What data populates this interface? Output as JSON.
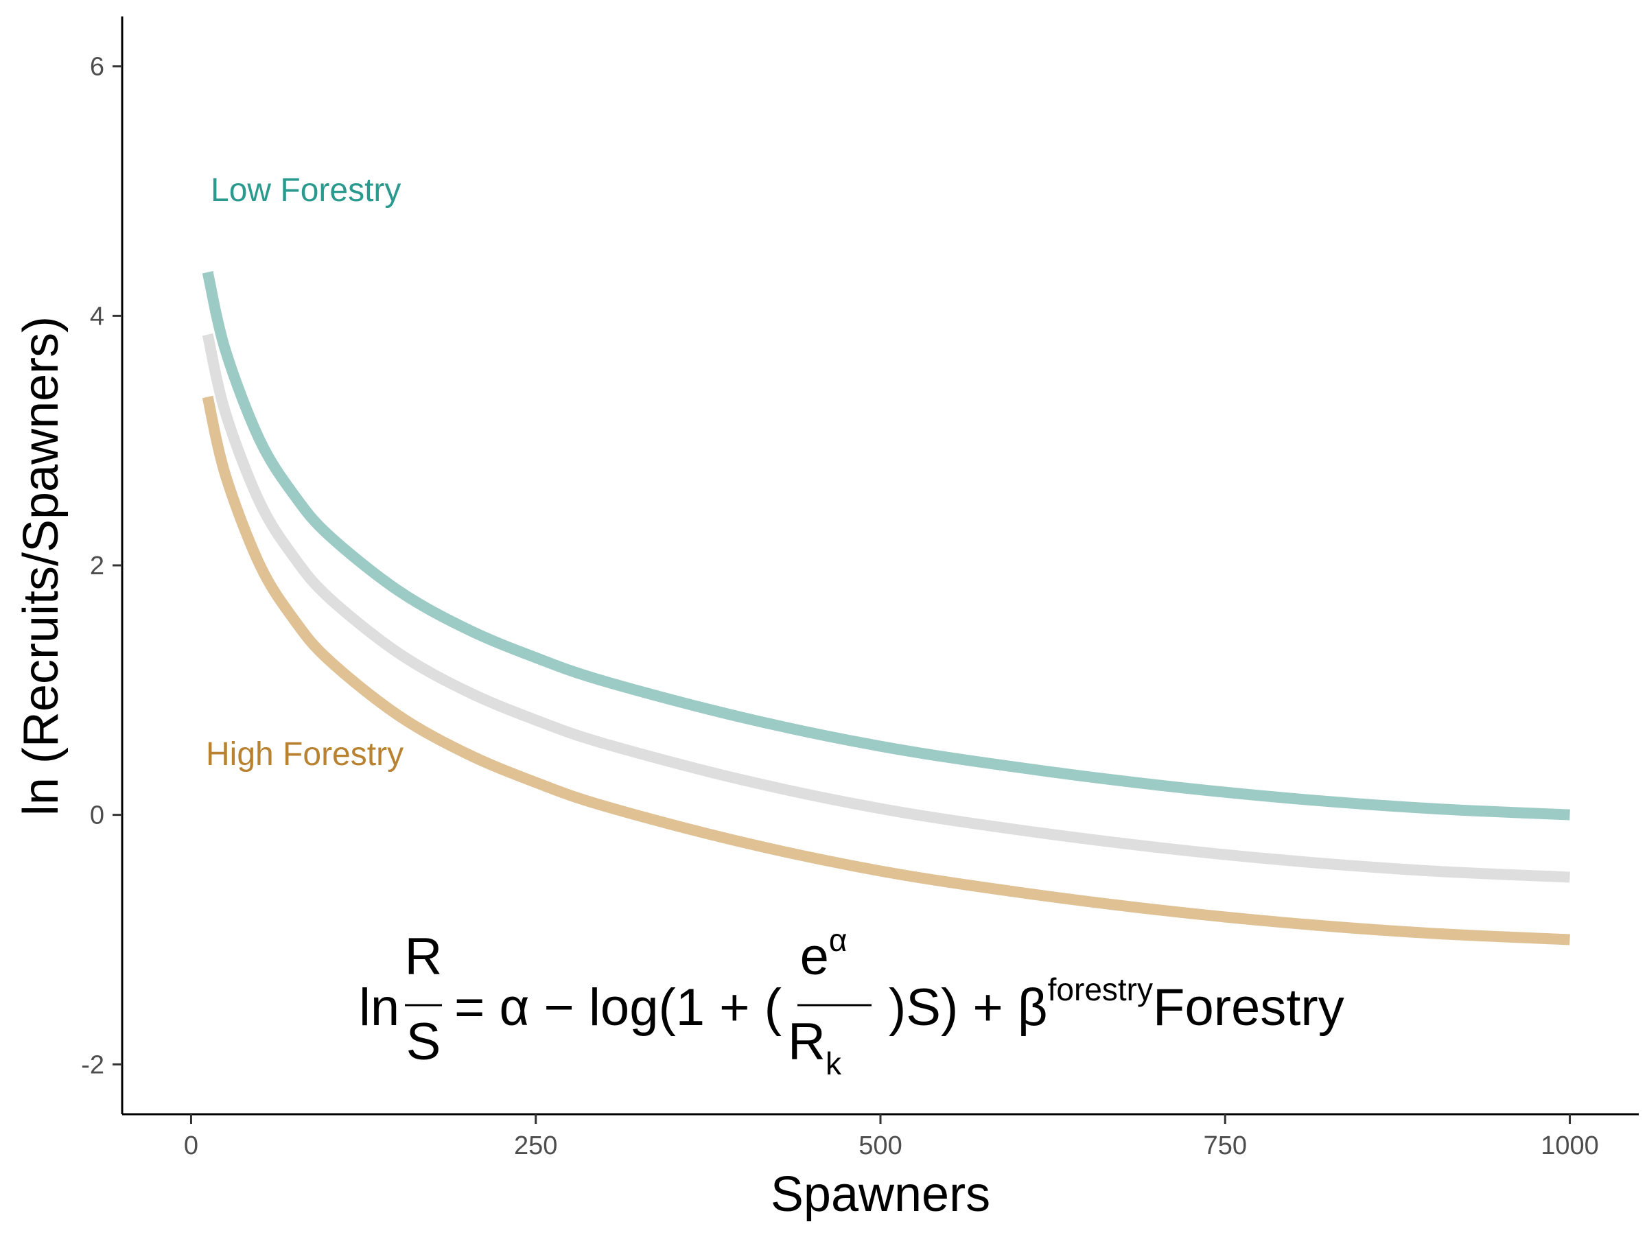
{
  "chart_data": {
    "type": "line",
    "xlabel": "Spawners",
    "ylabel": "ln (Recruits/Spawners)",
    "xlim": [
      -50,
      1050
    ],
    "ylim": [
      -2.4,
      6.4
    ],
    "x_ticks": [
      0,
      250,
      500,
      750,
      1000
    ],
    "y_ticks": [
      -2,
      0,
      2,
      4,
      6
    ],
    "x_tick_labels": [
      "0",
      "250",
      "500",
      "750",
      "1000"
    ],
    "y_tick_labels": [
      "-2",
      "0",
      "2",
      "4",
      "6"
    ],
    "grid": false,
    "x_range": [
      12,
      1000
    ],
    "series": [
      {
        "name": "Low Forestry",
        "color": "#9ccbc6",
        "label_color": "#2a9a8f",
        "x": [
          12,
          25,
          50,
          75,
          100,
          150,
          200,
          250,
          300,
          400,
          500,
          600,
          700,
          800,
          900,
          1000
        ],
        "values": [
          4.35,
          3.72,
          3.0,
          2.56,
          2.24,
          1.8,
          1.49,
          1.26,
          1.07,
          0.78,
          0.55,
          0.38,
          0.24,
          0.13,
          0.05,
          0.0
        ]
      },
      {
        "name": "",
        "color": "#dedede",
        "x": [
          12,
          25,
          50,
          75,
          100,
          150,
          200,
          250,
          300,
          400,
          500,
          600,
          700,
          800,
          900,
          1000
        ],
        "values": [
          3.85,
          3.22,
          2.5,
          2.06,
          1.74,
          1.3,
          0.99,
          0.76,
          0.57,
          0.28,
          0.05,
          -0.12,
          -0.26,
          -0.37,
          -0.45,
          -0.5
        ]
      },
      {
        "name": "High Forestry",
        "color": "#dfc194",
        "label_color": "#b88230",
        "x": [
          12,
          25,
          50,
          75,
          100,
          150,
          200,
          250,
          300,
          400,
          500,
          600,
          700,
          800,
          900,
          1000
        ],
        "values": [
          3.35,
          2.72,
          2.0,
          1.56,
          1.24,
          0.8,
          0.49,
          0.26,
          0.07,
          -0.22,
          -0.45,
          -0.62,
          -0.76,
          -0.87,
          -0.95,
          -1.0
        ]
      }
    ],
    "annotations": [
      {
        "text": "Low Forestry",
        "x": 35,
        "y": 4.98,
        "color": "#2a9a8f"
      },
      {
        "text": "High Forestry",
        "x": 30,
        "y": 0.47,
        "color": "#b88230"
      }
    ],
    "equation": {
      "ln": "ln",
      "frac1_num": "R",
      "frac1_den": "S",
      "part1": "= α − log(1 + (",
      "frac2_num_base": "e",
      "frac2_num_sup": "α",
      "frac2_den_base": "R",
      "frac2_den_sub": "k",
      "part2": ")S) + β",
      "beta_sup": "forestry",
      "part3": "Forestry"
    }
  }
}
